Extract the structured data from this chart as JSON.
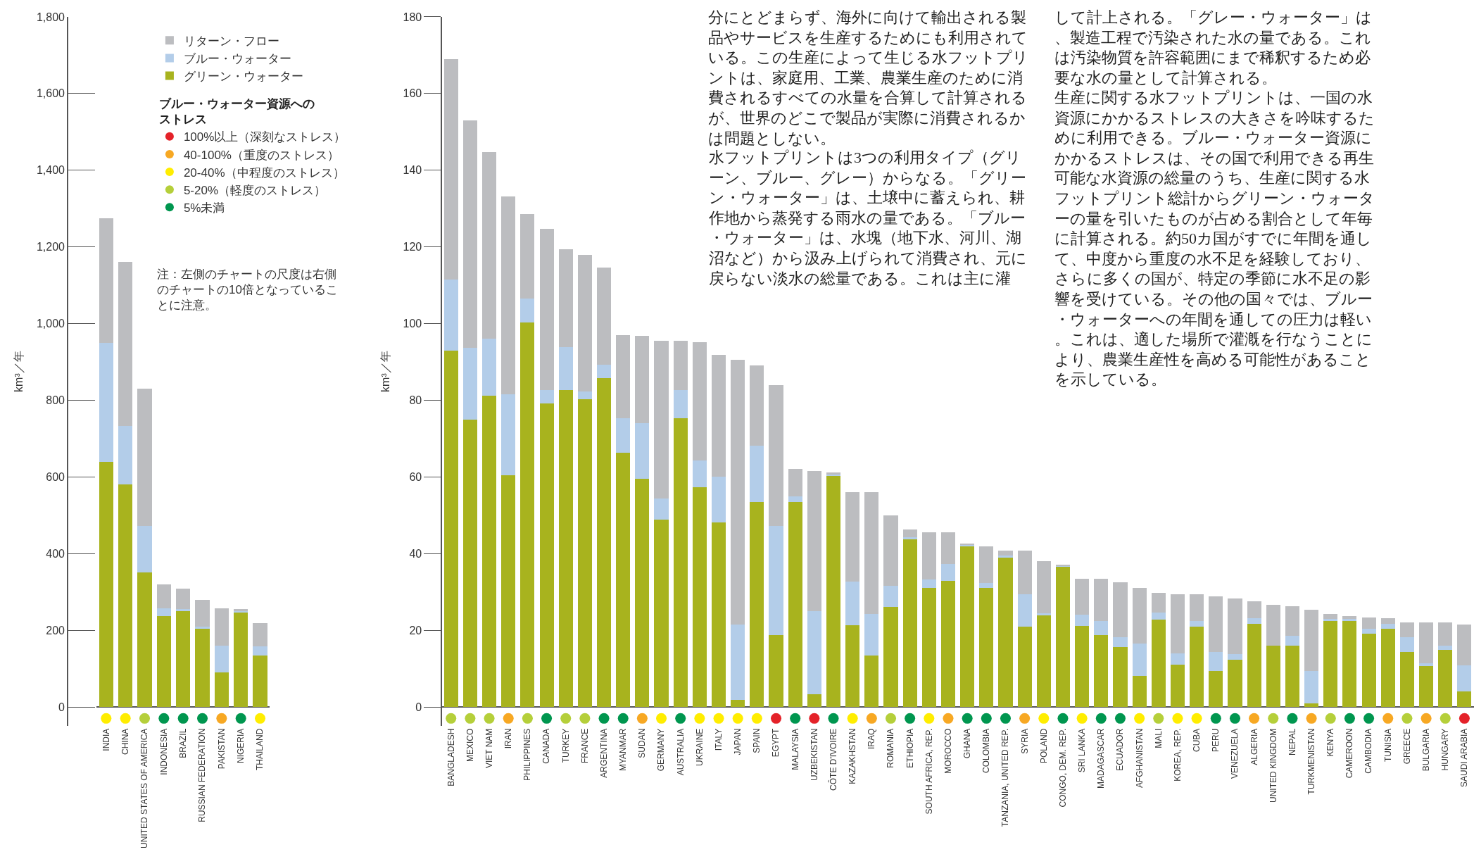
{
  "chart_data": [
    {
      "type": "bar",
      "stacked": true,
      "ylabel": "km³／年",
      "ylim": [
        -50,
        1800
      ],
      "yticks": [
        0,
        200,
        400,
        600,
        800,
        {
          "value": 1000,
          "label": "1,000"
        },
        {
          "value": 1200,
          "label": "1,200"
        },
        {
          "value": 1400,
          "label": "1,400"
        },
        {
          "value": 1600,
          "label": "1,600"
        },
        {
          "value": 1800,
          "label": "1,800"
        }
      ],
      "legend": "top right",
      "marker": "circle",
      "legend_title": "ブルー・ウォーター資源へのストレス",
      "categories": [
        "INDIA",
        "CHINA",
        "UNITED STATES OF AMERICA",
        "INDONESIA",
        "BRAZIL",
        "RUSSIAN FEDERATION",
        "PAKISTAN",
        "NIGERIA",
        "THAILAND"
      ],
      "series": [
        {
          "name": "グリーン・ウォーター",
          "color": "#a8b31e",
          "values": [
            640,
            580,
            350,
            237,
            250,
            203,
            90,
            248,
            135
          ]
        },
        {
          "name": "ブルー・ウォーター",
          "color": "#b3cde9",
          "values": [
            310,
            153,
            122,
            21,
            5,
            7,
            70,
            2,
            23
          ]
        },
        {
          "name": "リターン・フロー",
          "color": "#bcbdc0",
          "values": [
            325,
            427,
            358,
            62,
            53,
            70,
            97,
            5,
            60
          ]
        },
        {
          "type": "scatter",
          "name": "100%以上（深刻なストレス）",
          "color": "#e42229",
          "values": [
            null,
            null,
            null,
            null,
            null,
            null,
            null,
            null,
            null
          ]
        },
        {
          "type": "scatter",
          "name": "40-100%（重度のストレス）",
          "color": "#f7a823",
          "x": [
            "PAKISTAN"
          ],
          "values": [
            -30
          ]
        },
        {
          "type": "scatter",
          "name": "20-40%（中程度のストレス）",
          "color": "#ffed00",
          "x": [
            "INDIA",
            "CHINA",
            "THAILAND"
          ],
          "values": [
            -30,
            -30,
            -30
          ]
        },
        {
          "type": "scatter",
          "name": "5-20%（軽度のストレス）",
          "color": "#b5cf3a",
          "x": [
            "UNITED STATES OF AMERICA"
          ],
          "values": [
            -30
          ]
        },
        {
          "type": "scatter",
          "name": "5%未満",
          "color": "#00964f",
          "x": [
            "INDONESIA",
            "BRAZIL",
            "RUSSIAN FEDERATION",
            "NIGERIA"
          ],
          "values": [
            -30,
            -30,
            -30,
            -30
          ]
        }
      ],
      "annotations": [
        "注：左側のチャートの尺度は右側のチャートの10倍となっていることに注意。"
      ]
    },
    {
      "type": "bar",
      "stacked": true,
      "ylabel": "km³／年",
      "ylim": [
        -5,
        180
      ],
      "yticks": [
        0,
        20,
        40,
        60,
        80,
        100,
        120,
        140,
        160,
        180
      ],
      "marker": "circle",
      "categories": [
        "BANGLADESH",
        "MEXICO",
        "VIET NAM",
        "IRAN",
        "PHILIPPINES",
        "CANADA",
        "TURKEY",
        "FRANCE",
        "ARGENTINA",
        "MYANMAR",
        "SUDAN",
        "GERMANY",
        "AUSTRALIA",
        "UKRAINE",
        "ITALY",
        "JAPAN",
        "SPAIN",
        "EGYPT",
        "MALAYSIA",
        "UZBEKISTAN",
        "CÔTE D'IVOIRE",
        "KAZAKHSTAN",
        "IRAQ",
        "ROMANIA",
        "ETHIOPIA",
        "SOUTH AFRICA, REP.",
        "MOROCCO",
        "GHANA",
        "COLOMBIA",
        "TANZANIA, UNITED REP.",
        "SYRIA",
        "POLAND",
        "CONGO, DEM. REP.",
        "SRI LANKA",
        "MADAGASCAR",
        "ECUADOR",
        "AFGHANISTAN",
        "MALI",
        "KOREA, REP.",
        "CUBA",
        "PERU",
        "VENEZUELA",
        "ALGERIA",
        "UNITED KINGDOM",
        "NEPAL",
        "TURKMENISTAN",
        "KENYA",
        "CAMEROON",
        "CAMBODIA",
        "TUNISIA",
        "GREECE",
        "BULGARIA",
        "HUNGARY",
        "SAUDI ARABIA"
      ],
      "series": [
        {
          "color": "#a8b31e",
          "values": [
            92.9,
            75.0,
            81.1,
            60.5,
            100.2,
            79.2,
            82.7,
            80.2,
            85.8,
            66.3,
            59.5,
            48.9,
            75.3,
            57.3,
            48.2,
            1.8,
            53.4,
            18.7,
            53.4,
            3.3,
            60.3,
            21.3,
            13.4,
            26.0,
            43.9,
            31.1,
            32.9,
            42.0,
            31.1,
            39.0,
            20.9,
            23.9,
            36.7,
            21.1,
            18.8,
            15.6,
            8.0,
            22.8,
            11.1,
            20.9,
            9.3,
            12.3,
            21.7,
            16.0,
            16.0,
            1.0,
            22.5,
            22.5,
            19.1,
            20.3,
            14.3,
            10.6,
            14.9,
            4.1
          ]
        },
        {
          "color": "#b3cde9",
          "values": [
            18.5,
            18.7,
            15.0,
            21.1,
            6.4,
            3.4,
            11.2,
            2.1,
            3.5,
            9.0,
            14.5,
            5.5,
            7.3,
            6.9,
            11.9,
            19.6,
            14.7,
            28.5,
            1.5,
            21.7,
            0.5,
            11.4,
            10.9,
            5.5,
            0.3,
            2.1,
            4.4,
            0.3,
            1.3,
            0.5,
            8.5,
            0.5,
            0.2,
            2.9,
            3.6,
            2.6,
            8.5,
            1.9,
            2.8,
            1.5,
            5.1,
            1.4,
            1.4,
            0,
            2.6,
            8.4,
            0.4,
            0.4,
            1.2,
            1.4,
            3.9,
            0.7,
            1.1,
            6.7
          ]
        },
        {
          "color": "#bcbdc0",
          "values": [
            57.6,
            59.2,
            48.6,
            51.6,
            21.9,
            42.1,
            25.4,
            35.6,
            25.3,
            21.6,
            22.7,
            41.1,
            12.9,
            30.9,
            31.7,
            69.2,
            21.0,
            36.7,
            7.2,
            36.5,
            0.3,
            23.3,
            31.7,
            18.5,
            2.1,
            12.3,
            8.2,
            0.2,
            9.4,
            1.3,
            11.4,
            13.6,
            0.2,
            9.4,
            11.0,
            14.4,
            14.6,
            5.0,
            15.4,
            6.9,
            14.5,
            14.5,
            4.4,
            10.6,
            7.6,
            16.0,
            1.3,
            0.8,
            3.0,
            1.4,
            3.9,
            10.8,
            6.1,
            10.6
          ]
        },
        {
          "type": "scatter",
          "color": "#e42229",
          "x": [
            "EGYPT",
            "UZBEKISTAN",
            "SAUDI ARABIA"
          ],
          "values": [
            -3,
            -3,
            -3
          ]
        },
        {
          "type": "scatter",
          "color": "#f7a823",
          "x": [
            "IRAN",
            "SUDAN",
            "IRAQ",
            "MOROCCO",
            "SYRIA",
            "ALGERIA",
            "TURKMENISTAN",
            "TUNISIA",
            "BULGARIA"
          ],
          "values": [
            -3,
            -3,
            -3,
            -3,
            -3,
            -3,
            -3,
            -3,
            -3
          ]
        },
        {
          "type": "scatter",
          "color": "#ffed00",
          "x": [
            "GERMANY",
            "UKRAINE",
            "ITALY",
            "JAPAN",
            "SPAIN",
            "KAZAKHSTAN",
            "SOUTH AFRICA, REP.",
            "POLAND",
            "SRI LANKA",
            "AFGHANISTAN",
            "KOREA, REP.",
            "CUBA"
          ],
          "values": [
            -3,
            -3,
            -3,
            -3,
            -3,
            -3,
            -3,
            -3,
            -3,
            -3,
            -3,
            -3
          ]
        },
        {
          "type": "scatter",
          "color": "#b5cf3a",
          "x": [
            "BANGLADESH",
            "MEXICO",
            "VIET NAM",
            "PHILIPPINES",
            "TURKEY",
            "FRANCE",
            "ROMANIA",
            "MALI",
            "UNITED KINGDOM",
            "KENYA",
            "GREECE",
            "HUNGARY"
          ],
          "values": [
            -3,
            -3,
            -3,
            -3,
            -3,
            -3,
            -3,
            -3,
            -3,
            -3,
            -3,
            -3
          ]
        },
        {
          "type": "scatter",
          "color": "#00964f",
          "x": [
            "CANADA",
            "ARGENTINA",
            "MYANMAR",
            "AUSTRALIA",
            "MALAYSIA",
            "CÔTE D'IVOIRE",
            "ETHIOPIA",
            "GHANA",
            "COLOMBIA",
            "TANZANIA, UNITED REP.",
            "CONGO, DEM. REP.",
            "MADAGASCAR",
            "ECUADOR",
            "PERU",
            "VENEZUELA",
            "NEPAL",
            "CAMEROON",
            "CAMBODIA"
          ],
          "values": [
            -3,
            -3,
            -3,
            -3,
            -3,
            -3,
            -3,
            -3,
            -3,
            -3,
            -3,
            -3,
            -3,
            -3,
            -3,
            -3,
            -3,
            -3
          ]
        }
      ],
      "annotations": [
        "分にとどまらず、海外に向けて輸出される製品やサービスを生産するためにも利用されている。この生産によって生じる水フットプリントは、家庭用、工業、農業生産のために消費されるすべての水量を合算して計算されるが、世界のどこで製品が実際に消費されるかは問題としない。",
        "水フットプリントは3つの利用タイプ（グリーン、ブルー、グレー）からなる。「グリーン・ウォーター」は、土壌中に蓄えられ、耕作地から蒸発する雨水の量である。「ブルー・ウォーター」は、水塊（地下水、河川、湖沼など）から汲み上げられて消費され、元に戻らない淡水の総量である。これは主に灌",
        "して計上される。「グレー・ウォーター」は、製造工程で汚染された水の量である。これは汚染物質を許容範囲にまで稀釈するため必要な水の量として計算される。",
        "生産に関する水フットプリントは、一国の水資源にかかるストレスの大きさを吟味するために利用できる。ブルー・ウォーター資源にかかるストレスは、その国で利用できる再生可能な水資源の総量のうち、生産に関する水フットプリント総計からグリーン・ウォーターの量を引いたものが占める割合として年毎に計算される。約50カ国がすでに年間を通して、中度から重度の水不足を経験しており、さらに多くの国が、特定の季節に水不足の影響を受けている。その他の国々では、ブルー・ウォーターへの年間を通しての圧力は軽い。これは、適した場所で灌漑を行なうことにより、農業生産性を高める可能性があることを示している。"
      ]
    }
  ]
}
